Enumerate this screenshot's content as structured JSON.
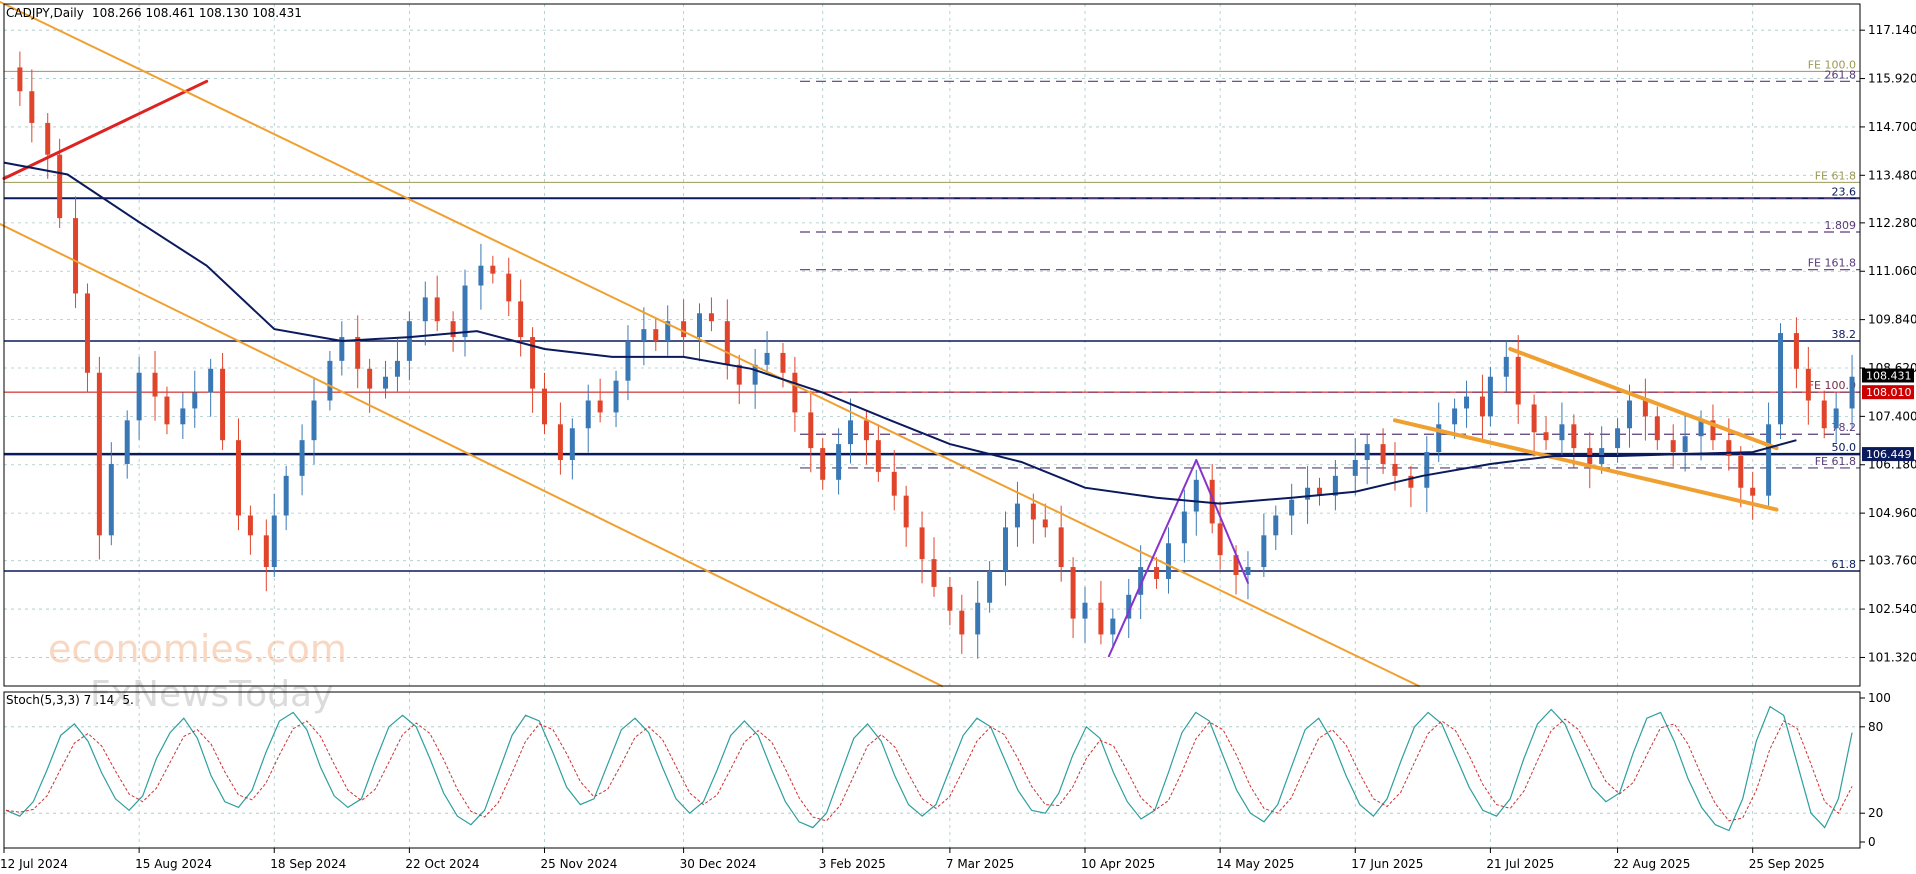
{
  "header": {
    "symbol": "CADJPY,Daily",
    "ohlc": "108.266 108.461 108.130 108.431"
  },
  "watermark": {
    "line1": "economies.com",
    "line2": "FxNewsToday"
  },
  "chart_data": {
    "type": "candlestick",
    "ylim": [
      100.6,
      117.8
    ],
    "x_range": [
      "12 Jul 2024",
      "22 Oct 2025"
    ],
    "price_ticks": [
      "117.140",
      "115.920",
      "114.700",
      "113.480",
      "112.280",
      "111.060",
      "109.840",
      "108.620",
      "107.400",
      "106.180",
      "104.960",
      "103.760",
      "102.540",
      "101.320"
    ],
    "date_ticks": [
      "12 Jul 2024",
      "15 Aug 2024",
      "18 Sep 2024",
      "22 Oct 2024",
      "25 Nov 2024",
      "30 Dec 2024",
      "3 Feb 2025",
      "7 Mar 2025",
      "10 Apr 2025",
      "14 May 2025",
      "17 Jun 2025",
      "21 Jul 2025",
      "22 Aug 2025",
      "25 Sep 2025"
    ],
    "current_price": "108.431",
    "price_tags": [
      {
        "value": 108.431,
        "label": "108.431",
        "bg": "#000000"
      },
      {
        "value": 108.01,
        "label": "108.010",
        "bg": "#cc0000"
      },
      {
        "value": 106.449,
        "label": "106.449",
        "bg": "#0a1a5c"
      }
    ],
    "solid_levels": [
      {
        "value": 116.1,
        "label": "FE 100.0",
        "color": "#9a9a58",
        "width": 1
      },
      {
        "value": 113.3,
        "label": "FE 61.8",
        "color": "#9a9a58",
        "width": 1
      },
      {
        "value": 112.9,
        "label": "23.6",
        "color": "#0a1a5c",
        "width": 2
      },
      {
        "value": 109.3,
        "label": "38.2",
        "color": "#0a1a5c",
        "width": 1.5
      },
      {
        "value": 108.01,
        "label": "",
        "color": "#cc0000",
        "width": 1
      },
      {
        "value": 106.449,
        "label": "50.0",
        "color": "#0a1a5c",
        "width": 2.5
      },
      {
        "value": 103.5,
        "label": "61.8",
        "color": "#0a1a5c",
        "width": 1.5
      }
    ],
    "dashed_levels": [
      {
        "value": 115.85,
        "label": "261.8",
        "color": "#5a3a7a"
      },
      {
        "value": 112.9,
        "label": "",
        "color": "#5a3a7a"
      },
      {
        "value": 112.05,
        "label": "1.809",
        "color": "#5a3a7a"
      },
      {
        "value": 111.1,
        "label": "FE 161.8",
        "color": "#5a3a7a"
      },
      {
        "value": 108.01,
        "label": "FE 100.0",
        "color": "#7a2a4a"
      },
      {
        "value": 106.95,
        "label": "78.2",
        "color": "#5a3a7a"
      },
      {
        "value": 106.1,
        "label": "FE 61.8",
        "color": "#5a3a7a"
      }
    ],
    "trendlines": [
      {
        "from": [
          "12 Jul 2024",
          113.4
        ],
        "to": [
          "1 Sep 2024",
          115.85
        ],
        "color": "#dd2222",
        "width": 3
      },
      {
        "from": [
          "10 Jul 2024",
          117.9
        ],
        "to": [
          "3 Jul 2025",
          100.6
        ],
        "color": "#f0a030",
        "width": 2
      },
      {
        "from": [
          "10 Jul 2024",
          112.3
        ],
        "to": [
          "5 Mar 2025",
          100.6
        ],
        "color": "#f0a030",
        "width": 2
      },
      {
        "from": [
          "27 Jun 2025",
          107.3
        ],
        "to": [
          "1 Oct 2025",
          105.05
        ],
        "color": "#f0a030",
        "width": 4
      },
      {
        "from": [
          "26 Jul 2025",
          109.1
        ],
        "to": [
          "1 Oct 2025",
          106.6
        ],
        "color": "#f0a030",
        "width": 4
      },
      {
        "from": [
          "16 Apr 2025",
          101.35
        ],
        "to": [
          "8 May 2025",
          106.3
        ],
        "color": "#8833cc",
        "width": 2
      },
      {
        "from": [
          "8 May 2025",
          106.3
        ],
        "to": [
          "21 May 2025",
          103.2
        ],
        "color": "#8833cc",
        "width": 2
      }
    ],
    "ma": {
      "color": "#0a1a5c",
      "points": [
        [
          "12 Jul 2024",
          113.8
        ],
        [
          "28 Jul 2024",
          113.5
        ],
        [
          "15 Aug 2024",
          112.3
        ],
        [
          "1 Sep 2024",
          111.2
        ],
        [
          "18 Sep 2024",
          109.6
        ],
        [
          "5 Oct 2024",
          109.3
        ],
        [
          "22 Oct 2024",
          109.4
        ],
        [
          "8 Nov 2024",
          109.55
        ],
        [
          "25 Nov 2024",
          109.1
        ],
        [
          "12 Dec 2024",
          108.9
        ],
        [
          "30 Dec 2024",
          108.9
        ],
        [
          "16 Jan 2025",
          108.6
        ],
        [
          "3 Feb 2025",
          108.0
        ],
        [
          "20 Feb 2025",
          107.3
        ],
        [
          "7 Mar 2025",
          106.7
        ],
        [
          "25 Mar 2025",
          106.25
        ],
        [
          "10 Apr 2025",
          105.6
        ],
        [
          "28 Apr 2025",
          105.35
        ],
        [
          "14 May 2025",
          105.2
        ],
        [
          "1 Jun 2025",
          105.35
        ],
        [
          "17 Jun 2025",
          105.5
        ],
        [
          "4 Jul 2025",
          105.9
        ],
        [
          "21 Jul 2025",
          106.2
        ],
        [
          "6 Aug 2025",
          106.4
        ],
        [
          "22 Aug 2025",
          106.4
        ],
        [
          "8 Sep 2025",
          106.45
        ],
        [
          "25 Sep 2025",
          106.5
        ],
        [
          "6 Oct 2025",
          106.8
        ]
      ]
    },
    "closes": [
      [
        "12 Jul 2024",
        116.2
      ],
      [
        "16 Jul 2024",
        115.6
      ],
      [
        "19 Jul 2024",
        114.8
      ],
      [
        "23 Jul 2024",
        114.0
      ],
      [
        "26 Jul 2024",
        112.4
      ],
      [
        "30 Jul 2024",
        110.5
      ],
      [
        "2 Aug 2024",
        108.5
      ],
      [
        "5 Aug 2024",
        104.4
      ],
      [
        "8 Aug 2024",
        106.2
      ],
      [
        "12 Aug 2024",
        107.3
      ],
      [
        "15 Aug 2024",
        108.5
      ],
      [
        "19 Aug 2024",
        107.9
      ],
      [
        "22 Aug 2024",
        107.2
      ],
      [
        "26 Aug 2024",
        107.6
      ],
      [
        "29 Aug 2024",
        108.0
      ],
      [
        "2 Sep 2024",
        108.6
      ],
      [
        "5 Sep 2024",
        106.8
      ],
      [
        "9 Sep 2024",
        104.9
      ],
      [
        "12 Sep 2024",
        104.4
      ],
      [
        "16 Sep 2024",
        103.6
      ],
      [
        "18 Sep 2024",
        104.9
      ],
      [
        "21 Sep 2024",
        105.9
      ],
      [
        "25 Sep 2024",
        106.8
      ],
      [
        "28 Sep 2024",
        107.8
      ],
      [
        "2 Oct 2024",
        108.8
      ],
      [
        "5 Oct 2024",
        109.4
      ],
      [
        "9 Oct 2024",
        108.6
      ],
      [
        "12 Oct 2024",
        108.1
      ],
      [
        "16 Oct 2024",
        108.4
      ],
      [
        "19 Oct 2024",
        108.8
      ],
      [
        "22 Oct 2024",
        109.8
      ],
      [
        "26 Oct 2024",
        110.4
      ],
      [
        "29 Oct 2024",
        109.8
      ],
      [
        "2 Nov 2024",
        109.4
      ],
      [
        "5 Nov 2024",
        110.7
      ],
      [
        "9 Nov 2024",
        111.2
      ],
      [
        "12 Nov 2024",
        111.0
      ],
      [
        "16 Nov 2024",
        110.3
      ],
      [
        "19 Nov 2024",
        109.4
      ],
      [
        "22 Nov 2024",
        108.1
      ],
      [
        "25 Nov 2024",
        107.2
      ],
      [
        "29 Nov 2024",
        106.3
      ],
      [
        "2 Dec 2024",
        107.1
      ],
      [
        "6 Dec 2024",
        107.8
      ],
      [
        "9 Dec 2024",
        107.5
      ],
      [
        "13 Dec 2024",
        108.3
      ],
      [
        "16 Dec 2024",
        109.3
      ],
      [
        "20 Dec 2024",
        109.6
      ],
      [
        "23 Dec 2024",
        109.3
      ],
      [
        "26 Dec 2024",
        109.8
      ],
      [
        "30 Dec 2024",
        109.4
      ],
      [
        "3 Jan 2025",
        110.0
      ],
      [
        "6 Jan 2025",
        109.8
      ],
      [
        "10 Jan 2025",
        108.7
      ],
      [
        "13 Jan 2025",
        108.2
      ],
      [
        "17 Jan 2025",
        108.7
      ],
      [
        "20 Jan 2025",
        109.0
      ],
      [
        "24 Jan 2025",
        108.5
      ],
      [
        "27 Jan 2025",
        107.5
      ],
      [
        "31 Jan 2025",
        106.6
      ],
      [
        "3 Feb 2025",
        105.8
      ],
      [
        "7 Feb 2025",
        106.7
      ],
      [
        "10 Feb 2025",
        107.3
      ],
      [
        "14 Feb 2025",
        106.8
      ],
      [
        "17 Feb 2025",
        106.0
      ],
      [
        "21 Feb 2025",
        105.4
      ],
      [
        "24 Feb 2025",
        104.6
      ],
      [
        "28 Feb 2025",
        103.8
      ],
      [
        "3 Mar 2025",
        103.1
      ],
      [
        "7 Mar 2025",
        102.5
      ],
      [
        "10 Mar 2025",
        101.9
      ],
      [
        "14 Mar 2025",
        102.7
      ],
      [
        "17 Mar 2025",
        103.5
      ],
      [
        "21 Mar 2025",
        104.6
      ],
      [
        "24 Mar 2025",
        105.2
      ],
      [
        "28 Mar 2025",
        104.8
      ],
      [
        "31 Mar 2025",
        104.6
      ],
      [
        "4 Apr 2025",
        103.6
      ],
      [
        "7 Apr 2025",
        102.3
      ],
      [
        "10 Apr 2025",
        102.7
      ],
      [
        "14 Apr 2025",
        101.9
      ],
      [
        "17 Apr 2025",
        102.3
      ],
      [
        "21 Apr 2025",
        102.9
      ],
      [
        "24 Apr 2025",
        103.6
      ],
      [
        "28 Apr 2025",
        103.3
      ],
      [
        "1 May 2025",
        104.2
      ],
      [
        "5 May 2025",
        105.0
      ],
      [
        "8 May 2025",
        105.8
      ],
      [
        "12 May 2025",
        104.7
      ],
      [
        "14 May 2025",
        103.9
      ],
      [
        "18 May 2025",
        103.4
      ],
      [
        "21 May 2025",
        103.6
      ],
      [
        "25 May 2025",
        104.4
      ],
      [
        "28 May 2025",
        104.9
      ],
      [
        "1 Jun 2025",
        105.3
      ],
      [
        "5 Jun 2025",
        105.6
      ],
      [
        "8 Jun 2025",
        105.4
      ],
      [
        "12 Jun 2025",
        105.9
      ],
      [
        "17 Jun 2025",
        106.3
      ],
      [
        "20 Jun 2025",
        106.7
      ],
      [
        "24 Jun 2025",
        106.2
      ],
      [
        "27 Jun 2025",
        105.9
      ],
      [
        "1 Jul 2025",
        105.6
      ],
      [
        "5 Jul 2025",
        106.5
      ],
      [
        "8 Jul 2025",
        107.2
      ],
      [
        "12 Jul 2025",
        107.6
      ],
      [
        "15 Jul 2025",
        107.9
      ],
      [
        "19 Jul 2025",
        107.4
      ],
      [
        "21 Jul 2025",
        108.4
      ],
      [
        "25 Jul 2025",
        108.9
      ],
      [
        "28 Jul 2025",
        107.7
      ],
      [
        "1 Aug 2025",
        107.0
      ],
      [
        "4 Aug 2025",
        106.8
      ],
      [
        "8 Aug 2025",
        107.2
      ],
      [
        "11 Aug 2025",
        106.6
      ],
      [
        "15 Aug 2025",
        106.2
      ],
      [
        "18 Aug 2025",
        106.6
      ],
      [
        "22 Aug 2025",
        107.1
      ],
      [
        "25 Aug 2025",
        107.8
      ],
      [
        "29 Aug 2025",
        107.4
      ],
      [
        "1 Sep 2025",
        106.8
      ],
      [
        "5 Sep 2025",
        106.5
      ],
      [
        "8 Sep 2025",
        106.9
      ],
      [
        "12 Sep 2025",
        107.3
      ],
      [
        "15 Sep 2025",
        106.8
      ],
      [
        "19 Sep 2025",
        106.4
      ],
      [
        "22 Sep 2025",
        105.6
      ],
      [
        "25 Sep 2025",
        105.4
      ],
      [
        "29 Sep 2025",
        107.2
      ],
      [
        "2 Oct 2025",
        109.5
      ],
      [
        "6 Oct 2025",
        108.6
      ],
      [
        "9 Oct 2025",
        107.8
      ],
      [
        "13 Oct 2025",
        107.1
      ],
      [
        "16 Oct 2025",
        107.6
      ],
      [
        "20 Oct 2025",
        108.4
      ]
    ]
  },
  "stoch": {
    "label": "Stoch(5,3,3) 7",
    "label_rest": ".14",
    "label_tail": "5.",
    "levels": [
      "100",
      "80",
      "20",
      "0"
    ],
    "main_color": "#2e9e9e",
    "signal_color": "#cc3333",
    "values": [
      22,
      18,
      28,
      50,
      74,
      82,
      70,
      48,
      30,
      22,
      32,
      58,
      76,
      86,
      72,
      46,
      28,
      24,
      36,
      62,
      84,
      90,
      78,
      52,
      32,
      24,
      30,
      56,
      80,
      88,
      80,
      58,
      34,
      18,
      12,
      22,
      48,
      74,
      88,
      84,
      62,
      38,
      26,
      30,
      54,
      78,
      86,
      76,
      52,
      30,
      20,
      28,
      50,
      74,
      84,
      74,
      50,
      28,
      14,
      10,
      20,
      46,
      72,
      82,
      70,
      46,
      26,
      18,
      26,
      50,
      74,
      86,
      80,
      58,
      36,
      22,
      20,
      34,
      60,
      80,
      72,
      48,
      28,
      16,
      22,
      48,
      76,
      90,
      84,
      60,
      36,
      20,
      14,
      26,
      52,
      78,
      86,
      70,
      46,
      26,
      18,
      30,
      56,
      80,
      90,
      82,
      60,
      38,
      22,
      18,
      30,
      58,
      82,
      92,
      82,
      60,
      38,
      28,
      34,
      62,
      86,
      90,
      70,
      44,
      24,
      12,
      8,
      30,
      70,
      94,
      88,
      54,
      20,
      10,
      30,
      76
    ]
  }
}
